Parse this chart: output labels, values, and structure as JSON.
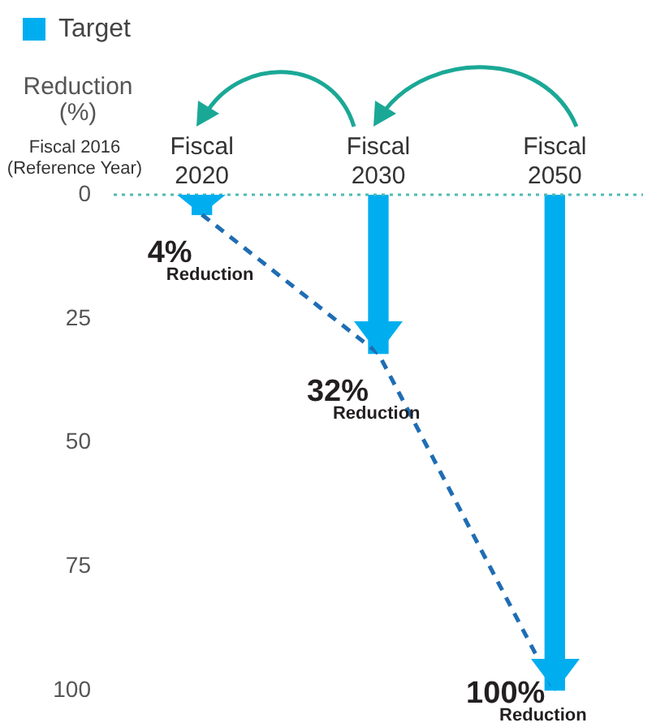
{
  "chart_data": {
    "type": "bar",
    "ylabel": "Reduction (%)",
    "categories": [
      "Fiscal 2020",
      "Fiscal 2030",
      "Fiscal 2050"
    ],
    "series": [
      {
        "name": "Target",
        "color": "#00aeef",
        "values": [
          4,
          32,
          100
        ],
        "value_labels": [
          "4% Reduction",
          "32% Reduction",
          "100% Reduction"
        ]
      },
      {
        "type": "line",
        "color": "#1f6db3",
        "values": [
          4,
          32,
          100
        ],
        "line_style": "dashed",
        "marker": "none"
      }
    ],
    "ylim": [
      100,
      0
    ],
    "yticks": [
      0,
      25,
      50,
      75,
      100
    ],
    "grid": false,
    "legend": "top left",
    "ref_lines": [
      {
        "axis": "y",
        "value": 0,
        "label": "Fiscal 2016 (Reference Year)",
        "color": "#4fbab3",
        "line_style": "dotted"
      }
    ]
  }
}
